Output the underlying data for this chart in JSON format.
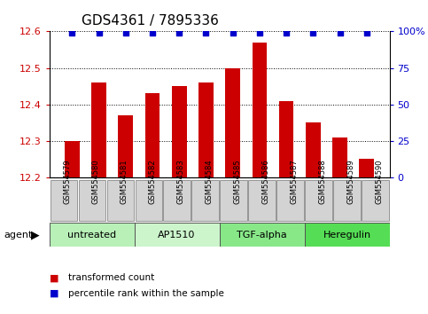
{
  "title": "GDS4361 / 7895336",
  "samples": [
    "GSM554579",
    "GSM554580",
    "GSM554581",
    "GSM554582",
    "GSM554583",
    "GSM554584",
    "GSM554585",
    "GSM554586",
    "GSM554587",
    "GSM554588",
    "GSM554589",
    "GSM554590"
  ],
  "values": [
    12.3,
    12.46,
    12.37,
    12.43,
    12.45,
    12.46,
    12.5,
    12.57,
    12.41,
    12.35,
    12.31,
    12.25
  ],
  "bar_color": "#cc0000",
  "dot_color": "#0000cc",
  "ylim_left": [
    12.2,
    12.6
  ],
  "ylim_right": [
    0,
    100
  ],
  "yticks_left": [
    12.2,
    12.3,
    12.4,
    12.5,
    12.6
  ],
  "yticks_right": [
    0,
    25,
    50,
    75,
    100
  ],
  "ytick_labels_right": [
    "0",
    "25",
    "50",
    "75",
    "100%"
  ],
  "groups": [
    {
      "label": "untreated",
      "start": 0,
      "end": 3,
      "color": "#b8f0b8"
    },
    {
      "label": "AP1510",
      "start": 3,
      "end": 6,
      "color": "#ccf5cc"
    },
    {
      "label": "TGF-alpha",
      "start": 6,
      "end": 9,
      "color": "#88e888"
    },
    {
      "label": "Heregulin",
      "start": 9,
      "end": 12,
      "color": "#55dd55"
    }
  ],
  "legend_items": [
    {
      "label": "transformed count",
      "color": "#cc0000"
    },
    {
      "label": "percentile rank within the sample",
      "color": "#0000cc"
    }
  ],
  "agent_label": "agent",
  "background_color": "#ffffff",
  "grid_color": "#000000",
  "bar_width": 0.55,
  "tick_color_left": "#cc0000",
  "tick_color_right": "#0000cc",
  "sample_box_color": "#d3d3d3",
  "title_fontsize": 11,
  "axis_fontsize": 8,
  "label_fontsize": 7.5
}
